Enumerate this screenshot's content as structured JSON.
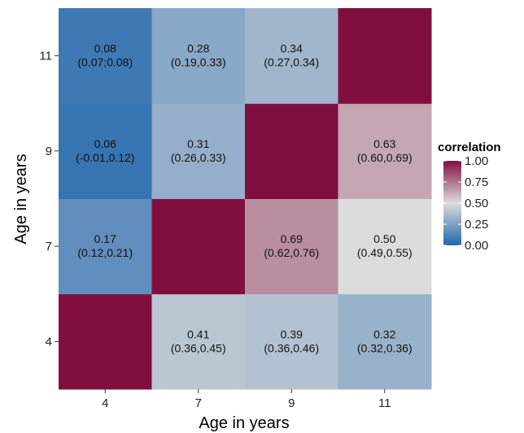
{
  "chart_data": {
    "type": "heatmap",
    "title": "",
    "xlabel": "Age in years",
    "ylabel": "Age in years",
    "x_categories": [
      "4",
      "7",
      "9",
      "11"
    ],
    "y_categories": [
      "4",
      "7",
      "9",
      "11"
    ],
    "cells": [
      {
        "x": "4",
        "y": "4",
        "value": 1.0,
        "label": "",
        "ci": ""
      },
      {
        "x": "7",
        "y": "4",
        "value": 0.41,
        "label": "0.41",
        "ci": "(0.36,0.45)"
      },
      {
        "x": "9",
        "y": "4",
        "value": 0.39,
        "label": "0.39",
        "ci": "(0.36,0.46)"
      },
      {
        "x": "11",
        "y": "4",
        "value": 0.32,
        "label": "0.32",
        "ci": "(0.32,0.36)"
      },
      {
        "x": "4",
        "y": "7",
        "value": 0.17,
        "label": "0.17",
        "ci": "(0.12,0.21)"
      },
      {
        "x": "7",
        "y": "7",
        "value": 1.0,
        "label": "",
        "ci": ""
      },
      {
        "x": "9",
        "y": "7",
        "value": 0.69,
        "label": "0.69",
        "ci": "(0.62,0.76)"
      },
      {
        "x": "11",
        "y": "7",
        "value": 0.5,
        "label": "0.50",
        "ci": "(0.49,0.55)"
      },
      {
        "x": "4",
        "y": "9",
        "value": 0.06,
        "label": "0.06",
        "ci": "(-0.01,0.12)"
      },
      {
        "x": "7",
        "y": "9",
        "value": 0.31,
        "label": "0.31",
        "ci": "(0.26,0.33)"
      },
      {
        "x": "9",
        "y": "9",
        "value": 1.0,
        "label": "",
        "ci": ""
      },
      {
        "x": "11",
        "y": "9",
        "value": 0.63,
        "label": "0.63",
        "ci": "(0.60,0.69)"
      },
      {
        "x": "4",
        "y": "11",
        "value": 0.08,
        "label": "0.08",
        "ci": "(0.07;0.08)"
      },
      {
        "x": "7",
        "y": "11",
        "value": 0.28,
        "label": "0.28",
        "ci": "(0.19,0.33)"
      },
      {
        "x": "9",
        "y": "11",
        "value": 0.34,
        "label": "0.34",
        "ci": "(0.27,0.34)"
      },
      {
        "x": "11",
        "y": "11",
        "value": 1.0,
        "label": "",
        "ci": ""
      }
    ],
    "legend": {
      "title": "correlation",
      "placement": "right",
      "ticks": [
        1.0,
        0.75,
        0.5,
        0.25,
        0.0
      ],
      "tick_labels": [
        "1.00",
        "0.75",
        "0.50",
        "0.25",
        "0.00"
      ],
      "range": [
        0,
        1
      ]
    },
    "colors": {
      "low": "#2166ac",
      "mid": "#dcdcdc",
      "high": "#800f3f"
    },
    "grid": false
  }
}
